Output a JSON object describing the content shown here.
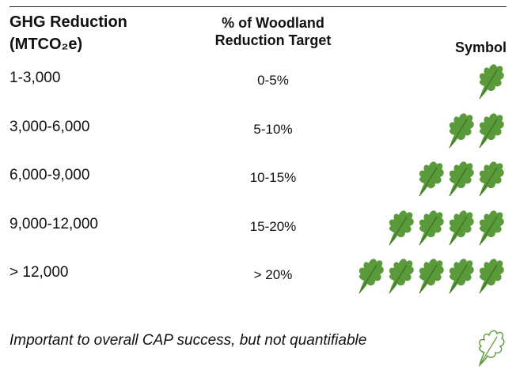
{
  "table": {
    "header": [
      [
        "GHG Reduction",
        "(MTCO₂e)"
      ],
      [
        "% of Woodland",
        "Reduction Target"
      ],
      [
        "Symbol"
      ]
    ],
    "rows": [
      {
        "range": "1-3,000",
        "percent": "0-5%",
        "leaves": 1
      },
      {
        "range": "3,000-6,000",
        "percent": "5-10%",
        "leaves": 2
      },
      {
        "range": "6,000-9,000",
        "percent": "10-15%",
        "leaves": 3
      },
      {
        "range": "9,000-12,000",
        "percent": "15-20%",
        "leaves": 4
      },
      {
        "range": "> 12,000",
        "percent": "> 20%",
        "leaves": 5
      }
    ],
    "note": "Important to overall CAP success, but not quantifiable"
  }
}
